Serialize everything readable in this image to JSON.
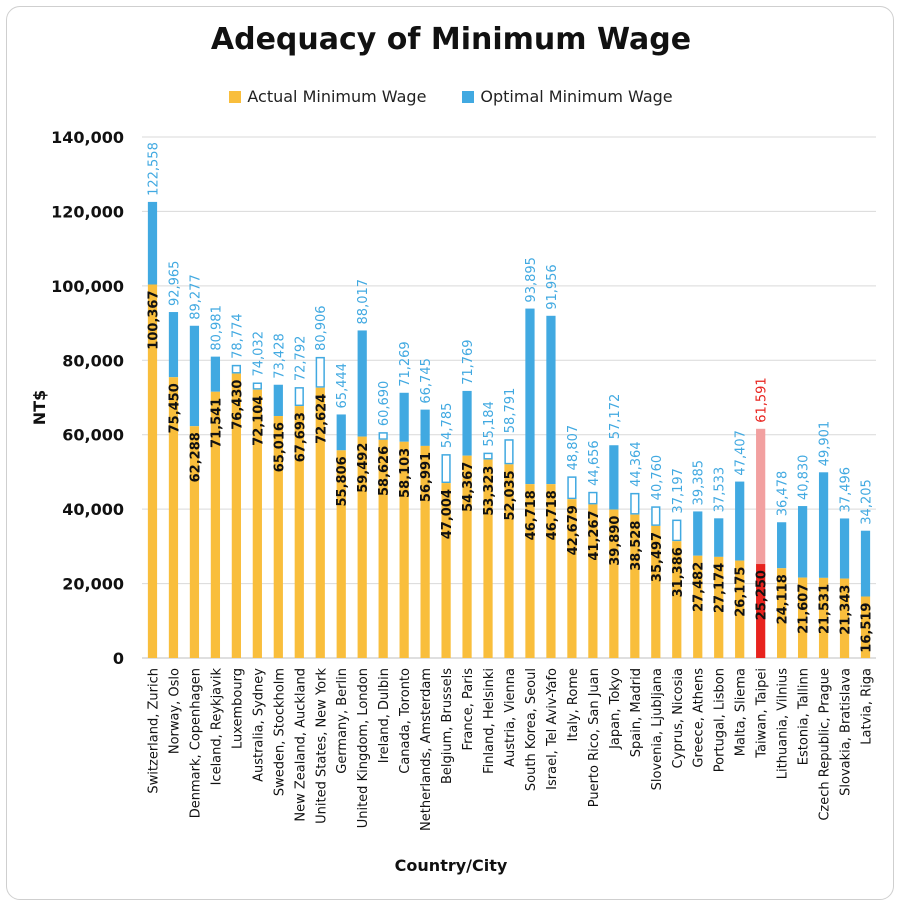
{
  "chart_data": {
    "type": "bar",
    "title": "Adequacy of Minimum Wage",
    "xlabel": "Country/City",
    "ylabel": "NT$",
    "ylim": [
      0,
      140000
    ],
    "yticks": [
      "0",
      "20,000",
      "40,000",
      "60,000",
      "80,000",
      "100,000",
      "120,000",
      "140,000"
    ],
    "grid": true,
    "legend_position": "top",
    "colors": {
      "actual": "#F9BE3C",
      "optimal": "#41A9E1",
      "highlight_actual": "#E8231E",
      "highlight_optimal": "#F2A0A0",
      "highlight_label": "#E8231E",
      "grid": "#d9d9d9"
    },
    "highlight_category": "Taiwan, Taipei",
    "categories": [
      "Switzerland, Zurich",
      "Norway, Oslo",
      "Denmark, Copenhagen",
      "Iceland, Reykjavik",
      "Luxembourg",
      "Australia, Sydney",
      "Sweden, Stockholm",
      "New Zealand, Auckland",
      "United States, New York",
      "Germany, Berlin",
      "United Kingdom, London",
      "Ireland, Dulbin",
      "Canada, Toronto",
      "Netherlands, Amsterdam",
      "Belgium, Brussels",
      "France, Paris",
      "Finland, Helsinki",
      "Austria, Vienna",
      "South Korea, Seoul",
      "Israel, Tel Aviv-Yafo",
      "Italy, Rome",
      "Puerto Rico, San Juan",
      "Japan, Tokyo",
      "Spain, Madrid",
      "Slovenia, Ljubljana",
      "Cyprus, Nicosia",
      "Greece, Athens",
      "Portugal, Lisbon",
      "Malta, Sliema",
      "Taiwan, Taipei",
      "Lithuania, Vilnius",
      "Estonia, Tallinn",
      "Czech Republic, Prague",
      "Slovakia, Bratislava",
      "Latvia, Riga"
    ],
    "series": [
      {
        "name": "Actual Minimum Wage",
        "values": [
          100367,
          75450,
          62288,
          71541,
          76430,
          72104,
          65016,
          67693,
          72624,
          55806,
          59492,
          58626,
          58103,
          56991,
          47004,
          54367,
          53323,
          52035,
          46718,
          46718,
          42679,
          41267,
          39890,
          38528,
          35497,
          31386,
          27482,
          27174,
          26175,
          25250,
          24118,
          21607,
          21531,
          21343,
          16519
        ],
        "labels": [
          "100,367",
          "75,450",
          "62,288",
          "71,541",
          "76,430",
          "72,104",
          "65,016",
          "67,693",
          "72,624",
          "55,806",
          "59,492",
          "58,626",
          "58,103",
          "56,991",
          "47,004",
          "54,367",
          "53,323",
          "52,035",
          "46,718",
          "46,718",
          "42,679",
          "41,267",
          "39,890",
          "38,528",
          "35,497",
          "31,386",
          "27,482",
          "27,174",
          "26,175",
          "25,250",
          "24,118",
          "21,607",
          "21,531",
          "21,343",
          "16,519"
        ]
      },
      {
        "name": "Optimal Minimum Wage",
        "values": [
          122558,
          92965,
          89277,
          80981,
          78774,
          74032,
          73428,
          72792,
          80906,
          65444,
          88017,
          60690,
          71269,
          66745,
          54785,
          71769,
          55184,
          58791,
          93895,
          91956,
          48807,
          44656,
          57172,
          44364,
          40760,
          37197,
          39385,
          37533,
          47407,
          61591,
          36478,
          40830,
          49901,
          37496,
          34205
        ],
        "labels": [
          "122,558",
          "92,965",
          "89,277",
          "80,981",
          "78,774",
          "74,032",
          "73,428",
          "72,792",
          "80,906",
          "65,444",
          "88,017",
          "60,690",
          "71,269",
          "66,745",
          "54,785",
          "71,769",
          "55,184",
          "58,791",
          "93,895",
          "91,956",
          "48,807",
          "44,656",
          "57,172",
          "44,364",
          "40,760",
          "37,197",
          "39,385",
          "37,533",
          "47,407",
          "61,591",
          "36,478",
          "40,830",
          "49,901",
          "37,496",
          "34,205"
        ]
      }
    ]
  }
}
